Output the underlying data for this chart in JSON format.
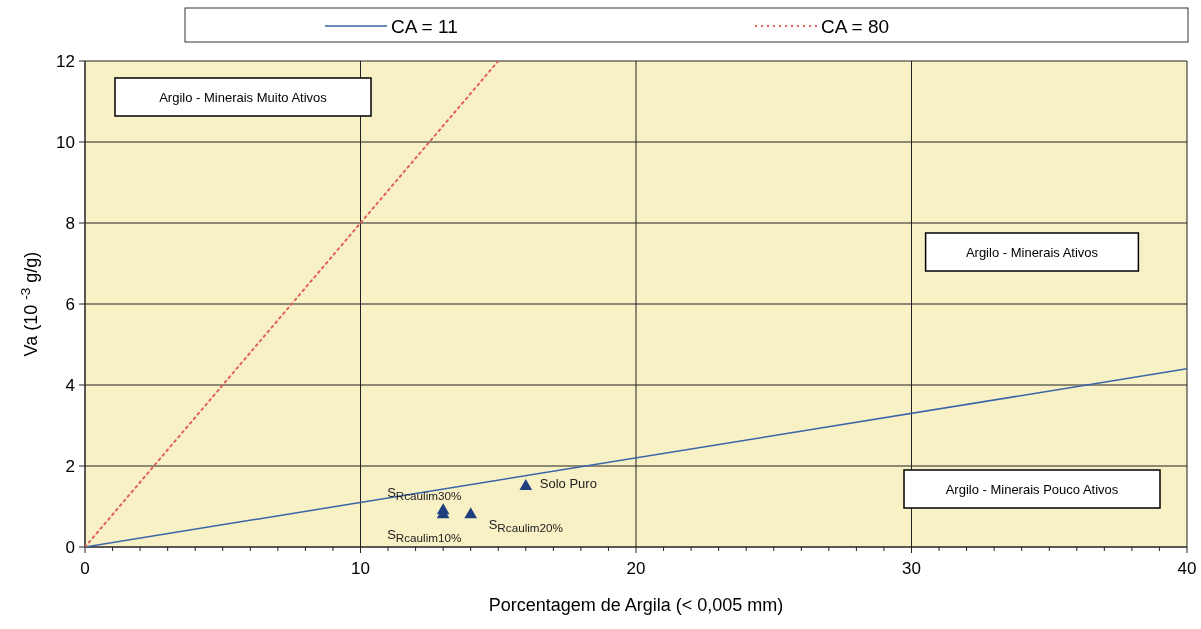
{
  "chart_data": {
    "type": "line",
    "xlabel": "Porcentagem de Argila (< 0,005 mm)",
    "ylabel": "Va (10 $^{-3}$ g/g)",
    "xlim": [
      0,
      40
    ],
    "ylim": [
      0,
      12
    ],
    "xticks": [
      0,
      10,
      20,
      30,
      40
    ],
    "yticks": [
      0,
      2,
      4,
      6,
      8,
      10,
      12
    ],
    "grid": true,
    "legend": "top",
    "series": [
      {
        "name": "CA  = 11",
        "color": "#3a64a8",
        "x": [
          0,
          40
        ],
        "values": [
          0,
          4.4
        ],
        "line_style": "solid",
        "marker": "none"
      },
      {
        "name": "CA = 80",
        "color": "#e0605a",
        "x": [
          0,
          15
        ],
        "values": [
          0,
          12
        ],
        "line_style": "dotted",
        "marker": "none"
      },
      {
        "type": "scatter",
        "color": "#1f3f7f",
        "x": [
          16,
          14,
          13,
          13
        ],
        "values": [
          1.5,
          0.8,
          0.9,
          0.8
        ],
        "marker": "triangle"
      }
    ],
    "annotations": [
      {
        "text": "Solo Puro",
        "x": 16,
        "y": 1.5
      },
      {
        "text": "S$_{Rcaulim20%}$",
        "x": 14,
        "y": 0.8
      },
      {
        "text": "S$_{Rcaulim30%}$",
        "x": 13,
        "y": 0.9
      },
      {
        "text": "S$_{Rcaulim10%}$",
        "x": 13,
        "y": 0.8
      },
      "Argilo - Minerais Muito Ativos",
      "Argilo - Minerais Ativos",
      "Argilo - Minerais Pouco Ativos"
    ]
  }
}
